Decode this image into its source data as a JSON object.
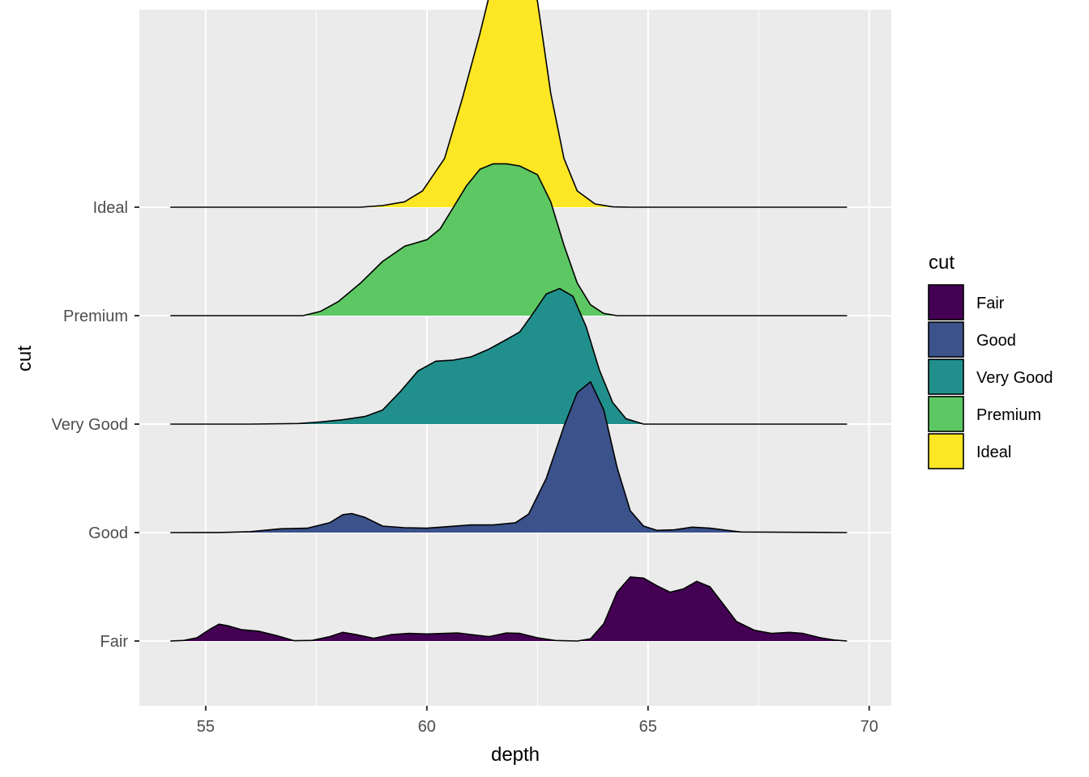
{
  "chart_data": {
    "type": "ridgeline",
    "xlabel": "depth",
    "ylabel": "cut",
    "xlim": [
      53.5,
      70.5
    ],
    "x_ticks": [
      55,
      60,
      65,
      70
    ],
    "x_minor_ticks": [
      57.5,
      62.5,
      67.5
    ],
    "x_range": [
      54.2,
      69.5
    ],
    "categories": [
      "Fair",
      "Good",
      "Very Good",
      "Premium",
      "Ideal"
    ],
    "ridge_height": 1.8,
    "grid": true,
    "legend": {
      "title": "cut",
      "position": "right",
      "items": [
        "Fair",
        "Good",
        "Very Good",
        "Premium",
        "Ideal"
      ]
    },
    "series": [
      {
        "name": "Fair",
        "color": "#440154",
        "points": [
          [
            54.2,
            0
          ],
          [
            54.5,
            0.0055
          ],
          [
            54.8,
            0.03
          ],
          [
            55.1,
            0.11
          ],
          [
            55.3,
            0.155
          ],
          [
            55.5,
            0.14
          ],
          [
            55.8,
            0.105
          ],
          [
            56.2,
            0.09
          ],
          [
            56.6,
            0.05
          ],
          [
            57.0,
            0.003
          ],
          [
            57.4,
            0.005
          ],
          [
            57.8,
            0.04
          ],
          [
            58.1,
            0.08
          ],
          [
            58.4,
            0.06
          ],
          [
            58.8,
            0.025
          ],
          [
            59.2,
            0.06
          ],
          [
            59.6,
            0.07
          ],
          [
            60.0,
            0.065
          ],
          [
            60.4,
            0.07
          ],
          [
            60.7,
            0.075
          ],
          [
            61.0,
            0.06
          ],
          [
            61.4,
            0.04
          ],
          [
            61.8,
            0.075
          ],
          [
            62.1,
            0.07
          ],
          [
            62.5,
            0.03
          ],
          [
            62.9,
            0.005
          ],
          [
            63.4,
            0.0
          ],
          [
            63.7,
            0.02
          ],
          [
            64.0,
            0.16
          ],
          [
            64.3,
            0.45
          ],
          [
            64.6,
            0.59
          ],
          [
            64.9,
            0.58
          ],
          [
            65.2,
            0.51
          ],
          [
            65.5,
            0.45
          ],
          [
            65.8,
            0.48
          ],
          [
            66.1,
            0.55
          ],
          [
            66.4,
            0.5
          ],
          [
            66.7,
            0.34
          ],
          [
            67.0,
            0.18
          ],
          [
            67.4,
            0.1
          ],
          [
            67.8,
            0.07
          ],
          [
            68.2,
            0.08
          ],
          [
            68.5,
            0.07
          ],
          [
            68.9,
            0.03
          ],
          [
            69.2,
            0.01
          ],
          [
            69.5,
            0.0
          ]
        ]
      },
      {
        "name": "Good",
        "color": "#3b528b",
        "points": [
          [
            54.2,
            0
          ],
          [
            55.3,
            0.001
          ],
          [
            56.0,
            0.008
          ],
          [
            56.7,
            0.035
          ],
          [
            57.3,
            0.04
          ],
          [
            57.8,
            0.09
          ],
          [
            58.1,
            0.165
          ],
          [
            58.3,
            0.175
          ],
          [
            58.6,
            0.14
          ],
          [
            59.0,
            0.06
          ],
          [
            59.5,
            0.045
          ],
          [
            60.0,
            0.04
          ],
          [
            60.5,
            0.055
          ],
          [
            61.0,
            0.07
          ],
          [
            61.5,
            0.07
          ],
          [
            62.0,
            0.09
          ],
          [
            62.3,
            0.17
          ],
          [
            62.7,
            0.5
          ],
          [
            63.1,
            0.98
          ],
          [
            63.4,
            1.29
          ],
          [
            63.7,
            1.39
          ],
          [
            64.0,
            1.13
          ],
          [
            64.3,
            0.6
          ],
          [
            64.6,
            0.2
          ],
          [
            64.9,
            0.06
          ],
          [
            65.2,
            0.02
          ],
          [
            65.6,
            0.025
          ],
          [
            66.0,
            0.05
          ],
          [
            66.4,
            0.04
          ],
          [
            66.8,
            0.02
          ],
          [
            67.1,
            0.005
          ],
          [
            69.5,
            0.0
          ]
        ]
      },
      {
        "name": "Very Good",
        "color": "#21908c",
        "points": [
          [
            54.2,
            0
          ],
          [
            56.0,
            0.0
          ],
          [
            57.1,
            0.005
          ],
          [
            57.6,
            0.02
          ],
          [
            58.1,
            0.04
          ],
          [
            58.6,
            0.07
          ],
          [
            59.0,
            0.13
          ],
          [
            59.4,
            0.3
          ],
          [
            59.8,
            0.49
          ],
          [
            60.2,
            0.58
          ],
          [
            60.6,
            0.59
          ],
          [
            61.0,
            0.62
          ],
          [
            61.4,
            0.69
          ],
          [
            61.8,
            0.78
          ],
          [
            62.1,
            0.85
          ],
          [
            62.4,
            1.02
          ],
          [
            62.7,
            1.2
          ],
          [
            63.0,
            1.25
          ],
          [
            63.3,
            1.18
          ],
          [
            63.6,
            0.9
          ],
          [
            63.9,
            0.5
          ],
          [
            64.2,
            0.2
          ],
          [
            64.5,
            0.05
          ],
          [
            64.9,
            0.0
          ],
          [
            69.5,
            0.0
          ]
        ]
      },
      {
        "name": "Premium",
        "color": "#5dc863",
        "points": [
          [
            54.2,
            0
          ],
          [
            57.2,
            0.0
          ],
          [
            57.6,
            0.04
          ],
          [
            58.0,
            0.13
          ],
          [
            58.5,
            0.3
          ],
          [
            59.0,
            0.5
          ],
          [
            59.5,
            0.64
          ],
          [
            60.0,
            0.7
          ],
          [
            60.3,
            0.8
          ],
          [
            60.6,
            1.0
          ],
          [
            60.9,
            1.2
          ],
          [
            61.2,
            1.35
          ],
          [
            61.5,
            1.4
          ],
          [
            61.8,
            1.4
          ],
          [
            62.1,
            1.38
          ],
          [
            62.5,
            1.3
          ],
          [
            62.8,
            1.05
          ],
          [
            63.1,
            0.65
          ],
          [
            63.4,
            0.3
          ],
          [
            63.7,
            0.1
          ],
          [
            64.0,
            0.02
          ],
          [
            64.3,
            0.0
          ],
          [
            69.5,
            0.0
          ]
        ]
      },
      {
        "name": "Ideal",
        "color": "#fde725",
        "points": [
          [
            54.2,
            0
          ],
          [
            58.5,
            0.0
          ],
          [
            59.0,
            0.015
          ],
          [
            59.5,
            0.05
          ],
          [
            59.9,
            0.15
          ],
          [
            60.4,
            0.45
          ],
          [
            60.8,
            1.0
          ],
          [
            61.2,
            1.6
          ],
          [
            61.5,
            2.1
          ],
          [
            61.8,
            2.48
          ],
          [
            62.0,
            2.51
          ],
          [
            62.2,
            2.4
          ],
          [
            62.5,
            1.9
          ],
          [
            62.8,
            1.05
          ],
          [
            63.1,
            0.45
          ],
          [
            63.4,
            0.15
          ],
          [
            63.8,
            0.03
          ],
          [
            64.2,
            0.003
          ],
          [
            64.6,
            0.0
          ],
          [
            69.5,
            0.0
          ]
        ]
      }
    ]
  }
}
